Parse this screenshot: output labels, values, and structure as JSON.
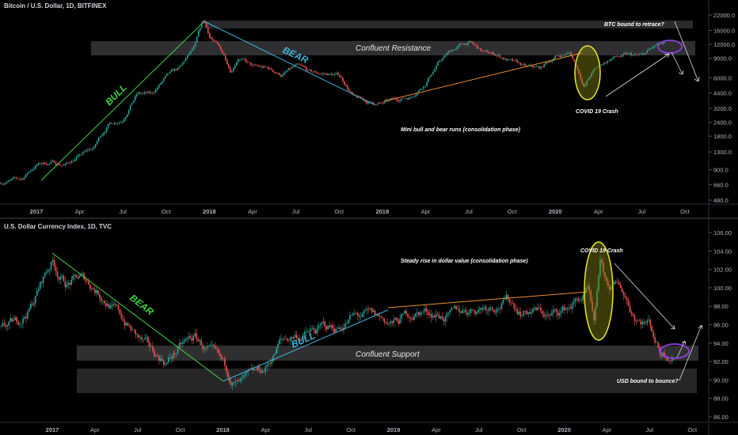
{
  "chart_data": [
    {
      "type": "candlestick",
      "title": "Bitcoin / U.S. Dollar, 1D, BITFINEX",
      "scale": "log",
      "y_ticks": [
        "22000.0",
        "16000.0",
        "12000.0",
        "9000.0",
        "6000.0",
        "4400.0",
        "3200.0",
        "2400.0",
        "1800.0",
        "1300.0",
        "900.0",
        "660.0",
        "480.0"
      ],
      "x_ticks": [
        "2017",
        "Apr",
        "Jul",
        "Oct",
        "2018",
        "Apr",
        "Jul",
        "Oct",
        "2019",
        "Apr",
        "Jul",
        "Oct",
        "2020",
        "Apr",
        "Jul",
        "Oct"
      ],
      "x_unit": "months since Jan 2017",
      "series": [
        {
          "name": "BTCUSD",
          "points": [
            [
              -2.5,
              700
            ],
            [
              -1,
              740
            ],
            [
              0,
              1000
            ],
            [
              1,
              1050
            ],
            [
              2,
              1000
            ],
            [
              3,
              1200
            ],
            [
              4,
              1400
            ],
            [
              5,
              2300
            ],
            [
              6,
              2600
            ],
            [
              7,
              4400
            ],
            [
              8,
              4200
            ],
            [
              9,
              6000
            ],
            [
              10,
              7200
            ],
            [
              11,
              11000
            ],
            [
              11.6,
              19000
            ],
            [
              12,
              14000
            ],
            [
              13,
              9500
            ],
            [
              13.5,
              7000
            ],
            [
              14,
              9500
            ],
            [
              15,
              7500
            ],
            [
              16,
              7200
            ],
            [
              17,
              6400
            ],
            [
              18,
              7500
            ],
            [
              19,
              6500
            ],
            [
              20,
              6500
            ],
            [
              21,
              6300
            ],
            [
              22,
              4000
            ],
            [
              23,
              3600
            ],
            [
              24,
              3500
            ],
            [
              25,
              3800
            ],
            [
              26,
              4100
            ],
            [
              27,
              5500
            ],
            [
              28,
              8500
            ],
            [
              29,
              11000
            ],
            [
              30,
              12500
            ],
            [
              31,
              10000
            ],
            [
              32,
              9600
            ],
            [
              33,
              8300
            ],
            [
              34,
              7300
            ],
            [
              35,
              7200
            ],
            [
              36,
              9300
            ],
            [
              37,
              10000
            ],
            [
              38,
              5000
            ],
            [
              38.5,
              6500
            ],
            [
              39,
              7500
            ],
            [
              40,
              9200
            ],
            [
              41,
              9400
            ],
            [
              42,
              9200
            ],
            [
              43,
              11500
            ],
            [
              43.6,
              11700
            ]
          ]
        }
      ],
      "annotations": {
        "bull_label": "BULL",
        "bear_label": "BEAR",
        "retrace_label": "BTC bound to retrace?",
        "resistance_label": "Confluent Resistance",
        "covid_label": "COVID 19 Crash",
        "phase_label": "Mini bull and bear runs (consolidation phase)"
      }
    },
    {
      "type": "candlestick",
      "title": "U.S. Dollar Currency Index, 1D, TVC",
      "scale": "linear",
      "ylim": [
        86,
        106
      ],
      "y_ticks": [
        "106.00",
        "104.00",
        "102.00",
        "100.00",
        "98.00",
        "96.00",
        "94.00",
        "92.00",
        "90.00",
        "88.00",
        "86.00"
      ],
      "x_ticks": [
        "2017",
        "Apr",
        "Jul",
        "Oct",
        "2018",
        "Apr",
        "Jul",
        "Oct",
        "2019",
        "Apr",
        "Jul",
        "Oct",
        "2020",
        "Apr",
        "Jul",
        "Oct"
      ],
      "x_unit": "months since Jan 2017",
      "series": [
        {
          "name": "DXY",
          "points": [
            [
              -3.6,
              95.5
            ],
            [
              -2.5,
              96
            ],
            [
              -1.5,
              98
            ],
            [
              -0.5,
              101.5
            ],
            [
              0,
              103
            ],
            [
              0.5,
              101.5
            ],
            [
              1,
              100.5
            ],
            [
              2,
              101
            ],
            [
              3,
              100
            ],
            [
              4,
              98.5
            ],
            [
              5,
              96.5
            ],
            [
              6,
              94.5
            ],
            [
              7,
              92.8
            ],
            [
              8,
              92
            ],
            [
              9,
              93.5
            ],
            [
              10,
              94.5
            ],
            [
              11,
              93
            ],
            [
              12,
              91
            ],
            [
              13,
              89.5
            ],
            [
              14,
              89.8
            ],
            [
              15,
              91
            ],
            [
              16,
              94
            ],
            [
              17,
              94.8
            ],
            [
              18,
              95
            ],
            [
              19,
              95.5
            ],
            [
              20,
              95.6
            ],
            [
              21,
              96.8
            ],
            [
              22,
              96.8
            ],
            [
              23,
              96.5
            ],
            [
              24,
              96
            ],
            [
              25,
              97
            ],
            [
              26,
              97.5
            ],
            [
              27,
              97.3
            ],
            [
              28,
              96.8
            ],
            [
              29,
              97.5
            ],
            [
              30,
              98
            ],
            [
              31,
              98.4
            ],
            [
              32,
              98.8
            ],
            [
              33,
              97.6
            ],
            [
              34,
              97.6
            ],
            [
              35,
              96.8
            ],
            [
              36,
              97.6
            ],
            [
              37,
              98.7
            ],
            [
              37.7,
              99.5
            ],
            [
              38.1,
              95
            ],
            [
              38.5,
              102.5
            ],
            [
              39,
              100
            ],
            [
              40,
              99.8
            ],
            [
              40.6,
              98
            ],
            [
              41,
              97
            ],
            [
              42,
              96.3
            ],
            [
              42.7,
              93.3
            ],
            [
              43.7,
              93
            ]
          ]
        }
      ],
      "annotations": {
        "bear_label": "BEAR",
        "bull_label": "BULL",
        "support_label": "Confluent Support",
        "covid_label": "COVID 19 Crash",
        "phase_label": "Steady rise in dollar value (consolidation phase)",
        "bounce_label": "USD bound to bounce?"
      }
    }
  ],
  "colors": {
    "up": "#26a69a",
    "down": "#ef5350",
    "bull_green": "#3ed43e",
    "bear_cyan": "#3bb3d6",
    "trend_orange": "#e8912f",
    "covid_yellow": "#e7e52b",
    "target_purple": "#8b3fe0"
  }
}
